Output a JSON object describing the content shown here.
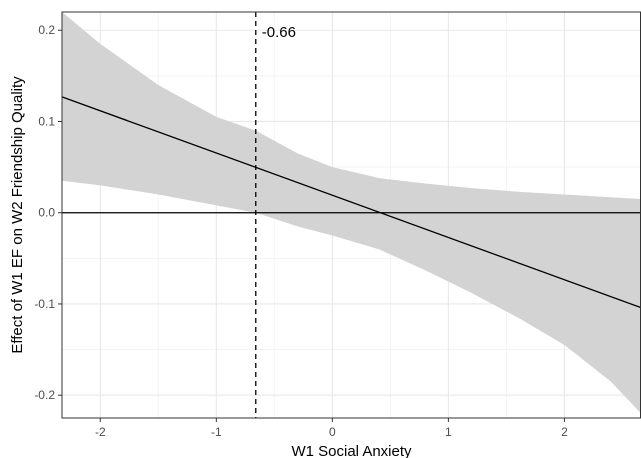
{
  "chart_data": {
    "type": "line",
    "title": "",
    "xlabel": "W1 Social Anxiety",
    "ylabel": "Effect of W1 EF on W2 Friendship Quality",
    "xlim": [
      -2.33,
      2.66
    ],
    "ylim": [
      -2.25,
      2.2
    ],
    "y_unit_scale": 0.1,
    "x_ticks": [
      {
        "value": -2,
        "label": "-2"
      },
      {
        "value": -1,
        "label": "-1"
      },
      {
        "value": 0,
        "label": "0"
      },
      {
        "value": 1,
        "label": "1"
      },
      {
        "value": 2,
        "label": "2"
      }
    ],
    "y_ticks": [
      {
        "value": 0.2,
        "label": "0.2"
      },
      {
        "value": 0.1,
        "label": "0.1"
      },
      {
        "value": 0.0,
        "label": "0.0"
      },
      {
        "value": -0.1,
        "label": "-0.1"
      },
      {
        "value": -0.2,
        "label": "-0.2"
      }
    ],
    "grid": true,
    "effect_line": {
      "x": [
        -2.33,
        2.66
      ],
      "y": [
        0.127,
        -0.104
      ]
    },
    "confidence_band": {
      "x": [
        -2.33,
        -2.0,
        -1.5,
        -1.0,
        -0.66,
        -0.3,
        0.0,
        0.4,
        0.8,
        1.2,
        1.6,
        2.0,
        2.4,
        2.66
      ],
      "upper": [
        0.22,
        0.185,
        0.14,
        0.105,
        0.09,
        0.065,
        0.05,
        0.038,
        0.032,
        0.027,
        0.023,
        0.02,
        0.017,
        0.015
      ],
      "lower": [
        0.035,
        0.03,
        0.02,
        0.008,
        0.0,
        -0.015,
        -0.025,
        -0.04,
        -0.063,
        -0.088,
        -0.115,
        -0.145,
        -0.185,
        -0.22
      ]
    },
    "reference_line_y": 0.0,
    "jn_boundary": {
      "x": -0.66,
      "label": "-0.66"
    },
    "colors": {
      "band": "#d3d3d3",
      "line": "#000000",
      "grid_major": "#e8e8e8",
      "grid_minor": "#f3f3f3",
      "panel_border": "#333333"
    }
  }
}
